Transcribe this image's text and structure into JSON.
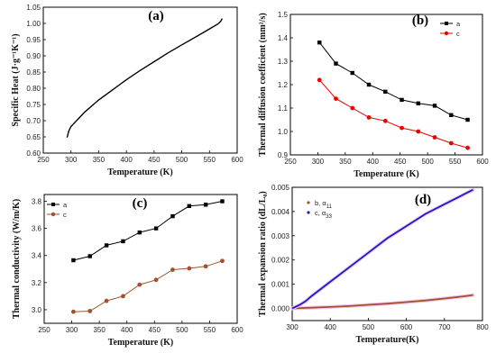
{
  "chart_data": [
    {
      "panel": "(a)",
      "type": "line",
      "xlabel": "Temperature (K)",
      "ylabel": "Specific Heat (J·g⁻¹K⁻¹)",
      "xlim": [
        250,
        600
      ],
      "ylim": [
        0.6,
        1.05
      ],
      "xticks": [
        250,
        300,
        350,
        400,
        450,
        500,
        550,
        600
      ],
      "yticks": [
        0.6,
        0.65,
        0.7,
        0.75,
        0.8,
        0.85,
        0.9,
        0.95,
        1.0,
        1.05
      ],
      "series": [
        {
          "color": "#000000",
          "marker": "none",
          "x": [
            293,
            296,
            300,
            310,
            325,
            350,
            375,
            400,
            425,
            450,
            475,
            500,
            525,
            550,
            565,
            570,
            573
          ],
          "y": [
            0.648,
            0.668,
            0.682,
            0.7,
            0.727,
            0.764,
            0.795,
            0.826,
            0.855,
            0.882,
            0.909,
            0.934,
            0.958,
            0.983,
            0.998,
            1.006,
            1.015
          ]
        }
      ]
    },
    {
      "panel": "(b)",
      "type": "line",
      "xlabel": "Temperature (K)",
      "ylabel": "Thermal diffusion coefficient (mm²/s)",
      "xlim": [
        250,
        600
      ],
      "ylim": [
        0.9,
        1.5
      ],
      "xticks": [
        250,
        300,
        350,
        400,
        450,
        500,
        550,
        600
      ],
      "yticks": [
        0.9,
        1.0,
        1.1,
        1.2,
        1.3,
        1.4,
        1.5
      ],
      "legend": "top-right",
      "series": [
        {
          "name": "a",
          "color": "#000000",
          "marker": "square",
          "x": [
            303,
            333,
            363,
            393,
            423,
            453,
            483,
            513,
            543,
            573
          ],
          "y": [
            1.38,
            1.29,
            1.25,
            1.2,
            1.17,
            1.135,
            1.12,
            1.11,
            1.07,
            1.05
          ]
        },
        {
          "name": "c",
          "color": "#ee0000",
          "marker": "circle",
          "x": [
            303,
            333,
            363,
            393,
            423,
            453,
            483,
            513,
            543,
            573
          ],
          "y": [
            1.22,
            1.14,
            1.1,
            1.06,
            1.045,
            1.015,
            1.0,
            0.975,
            0.95,
            0.93
          ]
        }
      ]
    },
    {
      "panel": "(c)",
      "type": "line",
      "xlabel": "Temperature (K)",
      "ylabel": "Thermal conductivity (W/m/K)",
      "xlim": [
        250,
        600
      ],
      "ylim": [
        2.9,
        3.85
      ],
      "xticks": [
        250,
        300,
        350,
        400,
        450,
        500,
        550,
        600
      ],
      "yticks": [
        3.0,
        3.2,
        3.4,
        3.6,
        3.8
      ],
      "legend": "top-left",
      "series": [
        {
          "name": "a",
          "color": "#000000",
          "marker": "square",
          "x": [
            303,
            333,
            363,
            393,
            423,
            453,
            483,
            513,
            543,
            573
          ],
          "y": [
            3.365,
            3.395,
            3.475,
            3.505,
            3.57,
            3.6,
            3.69,
            3.765,
            3.775,
            3.8
          ]
        },
        {
          "name": "c",
          "color": "#a0522d",
          "marker": "circle",
          "x": [
            303,
            333,
            363,
            393,
            423,
            453,
            483,
            513,
            543,
            573
          ],
          "y": [
            2.985,
            2.99,
            3.065,
            3.1,
            3.185,
            3.22,
            3.295,
            3.305,
            3.32,
            3.36
          ]
        }
      ]
    },
    {
      "panel": "(d)",
      "type": "line",
      "xlabel": "Temperature(K)",
      "ylabel": "Thermal expansion ratio (dL/L₀)",
      "xlim": [
        300,
        800
      ],
      "ylim": [
        -0.0005,
        0.005
      ],
      "xticks": [
        300,
        400,
        500,
        600,
        700,
        800
      ],
      "yticks": [
        0.0,
        0.001,
        0.002,
        0.003,
        0.004,
        0.005
      ],
      "legend": "top-left",
      "series": [
        {
          "name": "b, α",
          "name_sub": "11",
          "color": "#a0522d",
          "marker": "dot",
          "x": [
            300,
            350,
            400,
            450,
            500,
            550,
            600,
            650,
            700,
            750,
            775
          ],
          "y": [
            0.0,
            3e-05,
            6e-05,
            0.0001,
            0.00015,
            0.0002,
            0.00026,
            0.00033,
            0.00041,
            0.0005,
            0.00055
          ]
        },
        {
          "name": "c, α",
          "name_sub": "33",
          "color": "#1a1acc",
          "marker": "dot",
          "x": [
            300,
            320,
            335,
            350,
            400,
            450,
            500,
            550,
            600,
            650,
            700,
            750,
            775
          ],
          "y": [
            0.0,
            0.00015,
            0.0003,
            0.0005,
            0.0011,
            0.0017,
            0.0023,
            0.0029,
            0.0034,
            0.0039,
            0.0043,
            0.0047,
            0.0049
          ]
        }
      ]
    }
  ]
}
